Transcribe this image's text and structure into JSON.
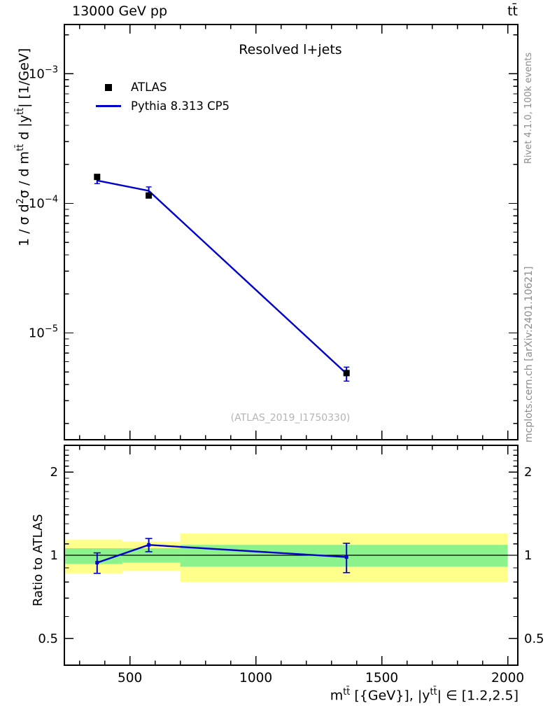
{
  "header": {
    "left": "13000 GeV pp",
    "right": "tt̄"
  },
  "side_notes": {
    "top": "Rivet 4.1.0,  100k events",
    "bottom": "mcplots.cern.ch [arXiv:2401.10621]"
  },
  "chart_data": {
    "type": "line",
    "title": "Resolved l+jets",
    "watermark": "(ATLAS_2019_I1750330)",
    "colors": {
      "mc_line": "#0000cc",
      "data_marker": "#000000",
      "band_yellow": "#ffff8c",
      "band_green": "#8cf28c",
      "frame": "#000000"
    },
    "x_axis": {
      "min": 240,
      "max": 2040,
      "major_ticks": [
        500,
        1000,
        1500,
        2000
      ],
      "minor_step": 100,
      "label_parts": [
        {
          "t": "m"
        },
        {
          "t": "tt̄",
          "sup": true
        },
        {
          "t": " [{GeV}], |y"
        },
        {
          "t": "tt̄",
          "sup": true
        },
        {
          "t": "| ∈ [1.2,2.5]"
        }
      ]
    },
    "y_axis_main": {
      "scale": "log",
      "min": 1.5e-06,
      "max": 0.0024,
      "decade_exponents": [
        -3,
        -4,
        -5
      ],
      "label_parts": [
        {
          "t": "1 / σ d"
        },
        {
          "t": "2",
          "sup": true
        },
        {
          "t": "σ / d m"
        },
        {
          "t": "tt̄",
          "sup": true
        },
        {
          "t": " d |y"
        },
        {
          "t": "tt̄",
          "sup": true
        },
        {
          "t": "| [1/GeV]"
        }
      ]
    },
    "y_axis_ratio": {
      "scale": "log",
      "min": 0.4,
      "max": 2.5,
      "major_ticks": [
        0.5,
        1,
        2
      ],
      "minor_ticks": [
        0.4,
        0.6,
        0.7,
        0.8,
        0.9,
        1.1,
        1.2,
        1.3,
        1.4,
        1.5,
        1.6,
        1.7,
        1.8,
        1.9,
        2.1,
        2.2,
        2.3,
        2.4
      ],
      "label": "Ratio to ATLAS"
    },
    "series": {
      "atlas": {
        "label": "ATLAS",
        "x": [
          370,
          575,
          1360
        ],
        "y": [
          0.00016,
          0.000115,
          4.9e-06
        ]
      },
      "pythia": {
        "label": "Pythia 8.313 CP5",
        "x": [
          370,
          575,
          1360
        ],
        "y": [
          0.00015,
          0.000125,
          4.85e-06
        ],
        "yerr": [
          8e-06,
          9e-06,
          6e-07
        ]
      }
    },
    "ratio": {
      "x": [
        370,
        575,
        1360
      ],
      "y": [
        0.94,
        1.09,
        0.985
      ],
      "yerr": [
        0.08,
        0.06,
        0.12
      ]
    },
    "uncertainty_bands": [
      {
        "x0": 240,
        "x1": 470,
        "yellow": [
          0.86,
          1.14
        ],
        "green": [
          0.93,
          1.06
        ]
      },
      {
        "x0": 470,
        "x1": 700,
        "yellow": [
          0.88,
          1.12
        ],
        "green": [
          0.94,
          1.06
        ]
      },
      {
        "x0": 700,
        "x1": 2000,
        "yellow": [
          0.8,
          1.2
        ],
        "green": [
          0.91,
          1.09
        ]
      }
    ]
  }
}
